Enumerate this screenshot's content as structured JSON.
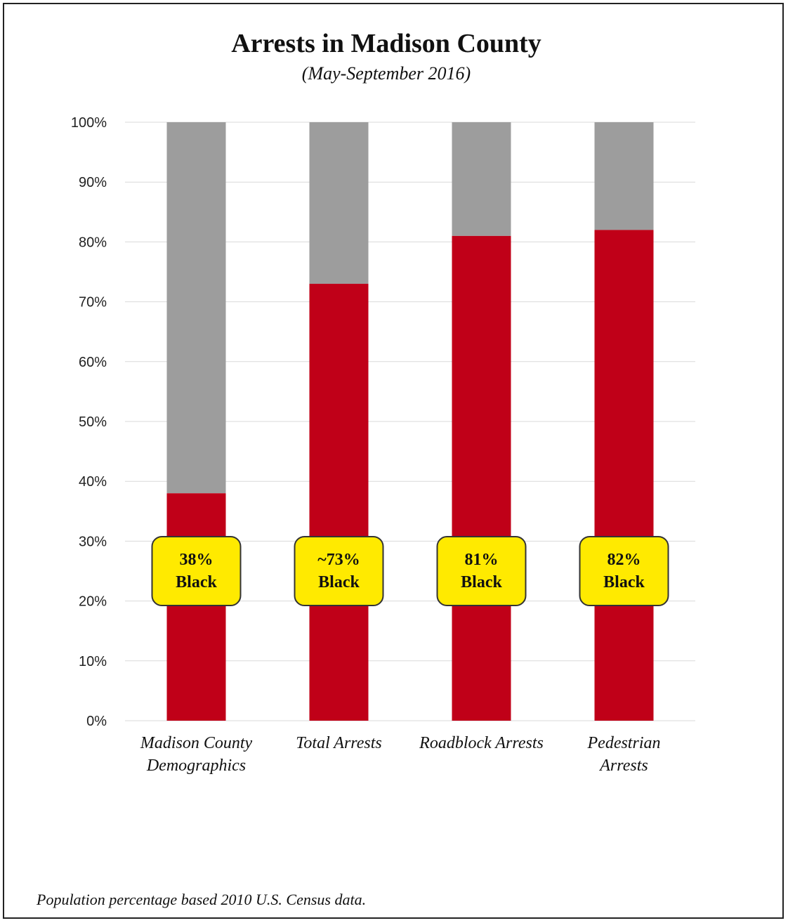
{
  "colors": {
    "black_share": "#c00018",
    "remainder": "#9d9d9d",
    "badge_fill": "#ffea00",
    "badge_stroke": "#333333",
    "grid": "#d9d9d9"
  },
  "chart_data": {
    "type": "bar",
    "stacked": true,
    "title": "Arrests in Madison County",
    "subtitle": "(May-September 2016)",
    "categories": [
      [
        "Madison County",
        "Demographics"
      ],
      [
        "Total Arrests"
      ],
      [
        "Roadblock Arrests"
      ],
      [
        "Pedestrian",
        "Arrests"
      ]
    ],
    "values": [
      38,
      73,
      81,
      82
    ],
    "total": 100,
    "ylim": [
      0,
      100
    ],
    "yticks": [
      "0%",
      "10%",
      "20%",
      "30%",
      "40%",
      "50%",
      "60%",
      "70%",
      "80%",
      "90%",
      "100%"
    ],
    "grid": true,
    "labels": [
      [
        "38%",
        "Black"
      ],
      [
        "~73%",
        "Black"
      ],
      [
        "81%",
        "Black"
      ],
      [
        "82%",
        "Black"
      ]
    ],
    "label_level": 25
  },
  "footnote": "Population percentage based 2010 U.S. Census data."
}
